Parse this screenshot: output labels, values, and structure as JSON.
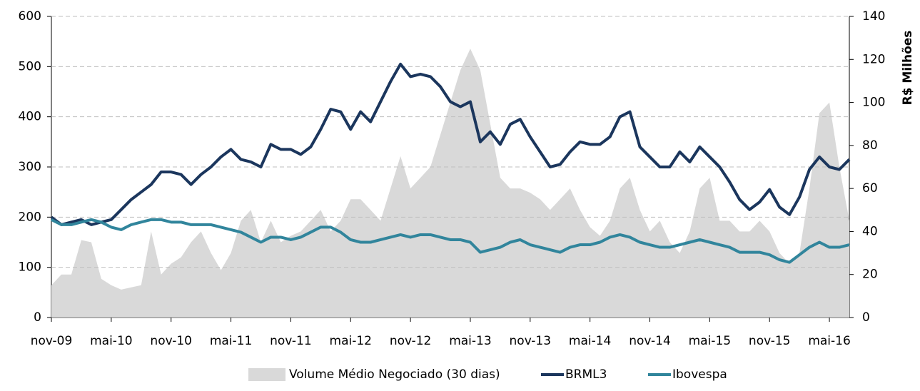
{
  "chart_data": {
    "type": "line",
    "categories": [
      "nov-09",
      null,
      null,
      null,
      null,
      null,
      "mai-10",
      null,
      null,
      null,
      null,
      null,
      "nov-10",
      null,
      null,
      null,
      null,
      null,
      "mai-11",
      null,
      null,
      null,
      null,
      null,
      "nov-11",
      null,
      null,
      null,
      null,
      null,
      "mai-12",
      null,
      null,
      null,
      null,
      null,
      "nov-12",
      null,
      null,
      null,
      null,
      null,
      "mai-13",
      null,
      null,
      null,
      null,
      null,
      "nov-13",
      null,
      null,
      null,
      null,
      null,
      "mai-14",
      null,
      null,
      null,
      null,
      null,
      "nov-14",
      null,
      null,
      null,
      null,
      null,
      "mai-15",
      null,
      null,
      null,
      null,
      null,
      "nov-15",
      null,
      null,
      null,
      null,
      null,
      "mai-16",
      null,
      null
    ],
    "ylim": [
      0,
      600
    ],
    "yticks": [
      0,
      100,
      200,
      300,
      400,
      500,
      600
    ],
    "y2lim": [
      0,
      140
    ],
    "y2ticks": [
      0,
      20,
      40,
      60,
      80,
      100,
      120,
      140
    ],
    "y2label": "R$ Milhões",
    "grid": true,
    "legend": "bottom",
    "series": [
      {
        "name": "Volume Médio Negociado (30 dias)",
        "color": "#d9d9d9",
        "axis": "y2",
        "style": "area",
        "values": [
          15,
          20,
          20,
          36,
          35,
          18,
          15,
          13,
          14,
          15,
          40,
          20,
          25,
          28,
          35,
          40,
          30,
          22,
          30,
          45,
          50,
          35,
          45,
          35,
          38,
          40,
          45,
          50,
          40,
          45,
          55,
          55,
          50,
          45,
          60,
          75,
          60,
          65,
          70,
          85,
          100,
          115,
          125,
          115,
          90,
          65,
          60,
          60,
          58,
          55,
          50,
          55,
          60,
          50,
          42,
          38,
          45,
          60,
          65,
          50,
          40,
          45,
          35,
          30,
          40,
          60,
          65,
          45,
          45,
          40,
          40,
          45,
          40,
          30,
          25,
          30,
          60,
          95,
          100,
          70,
          45
        ]
      },
      {
        "name": "BRML3",
        "color": "#1b365d",
        "style": "line",
        "values": [
          200,
          185,
          190,
          195,
          185,
          190,
          195,
          215,
          235,
          250,
          265,
          290,
          290,
          285,
          265,
          285,
          300,
          320,
          335,
          315,
          310,
          300,
          345,
          335,
          335,
          325,
          340,
          375,
          415,
          410,
          375,
          410,
          390,
          430,
          470,
          505,
          480,
          485,
          480,
          460,
          430,
          420,
          430,
          350,
          370,
          345,
          385,
          395,
          360,
          330,
          300,
          305,
          330,
          350,
          345,
          345,
          360,
          400,
          410,
          340,
          320,
          300,
          300,
          330,
          310,
          340,
          320,
          300,
          270,
          235,
          215,
          230,
          255,
          220,
          205,
          240,
          295,
          320,
          300,
          295,
          315
        ]
      },
      {
        "name": "Ibovespa",
        "color": "#31859c",
        "style": "line",
        "values": [
          195,
          185,
          185,
          190,
          195,
          190,
          180,
          175,
          185,
          190,
          195,
          195,
          190,
          190,
          185,
          185,
          185,
          180,
          175,
          170,
          160,
          150,
          160,
          160,
          155,
          160,
          170,
          180,
          180,
          170,
          155,
          150,
          150,
          155,
          160,
          165,
          160,
          165,
          165,
          160,
          155,
          155,
          150,
          130,
          135,
          140,
          150,
          155,
          145,
          140,
          135,
          130,
          140,
          145,
          145,
          150,
          160,
          165,
          160,
          150,
          145,
          140,
          140,
          145,
          150,
          155,
          150,
          145,
          140,
          130,
          130,
          130,
          125,
          115,
          110,
          125,
          140,
          150,
          140,
          140,
          145
        ]
      }
    ]
  }
}
